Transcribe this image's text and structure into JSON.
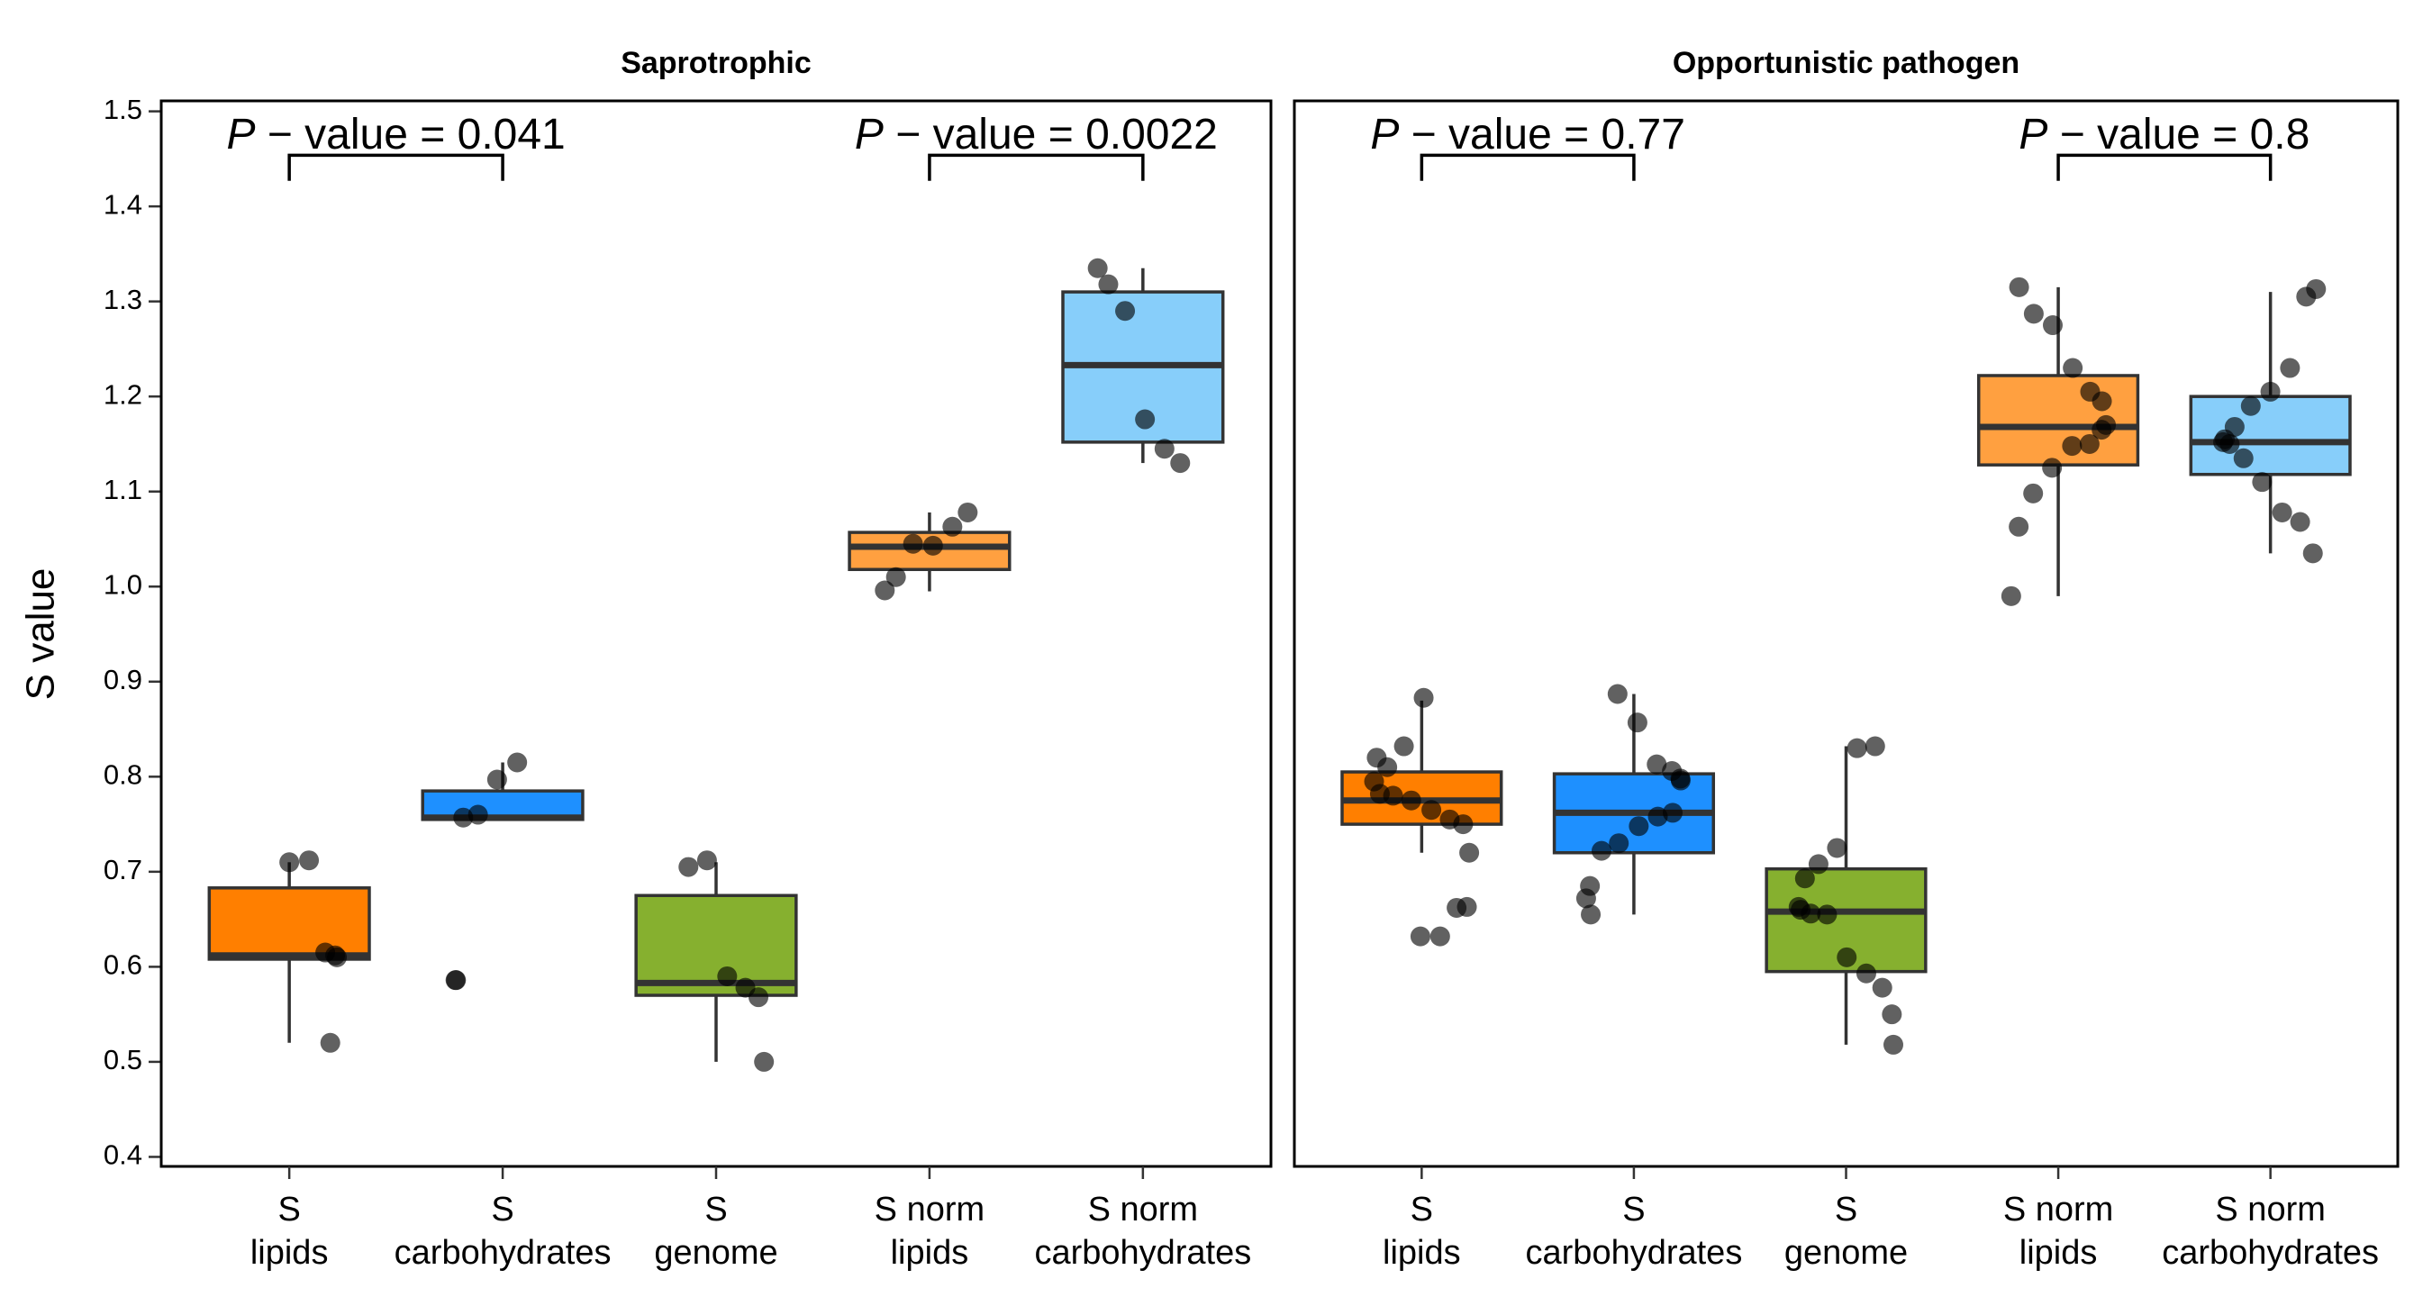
{
  "chart_data": {
    "type": "box",
    "ylabel": "S value",
    "ylim": [
      0.39,
      1.511
    ],
    "yticks": [
      {
        "value": 0.4,
        "label": "0.4"
      },
      {
        "value": 0.5,
        "label": "0.5"
      },
      {
        "value": 0.6,
        "label": "0.6"
      },
      {
        "value": 0.7,
        "label": "0.7"
      },
      {
        "value": 0.8,
        "label": "0.8"
      },
      {
        "value": 0.9,
        "label": "0.9"
      },
      {
        "value": 1.0,
        "label": "1.0"
      },
      {
        "value": 1.1,
        "label": "1.1"
      },
      {
        "value": 1.2,
        "label": "1.2"
      },
      {
        "value": 1.3,
        "label": "1.3"
      },
      {
        "value": 1.4,
        "label": "1.4"
      },
      {
        "value": 1.5,
        "label": "1.5"
      }
    ],
    "categories": [
      [
        "S",
        "lipids"
      ],
      [
        "S",
        "carbohydrates"
      ],
      [
        "S",
        "genome"
      ],
      [
        "S norm",
        "lipids"
      ],
      [
        "S norm",
        "carbohydrates"
      ]
    ],
    "panels": [
      {
        "title": "Saprotrophic",
        "colors": [
          "#ff7f00",
          "#1e90ff",
          "#86b02f",
          "#ffa040",
          "#87cefa"
        ],
        "annotations": [
          "P − value = 0.041",
          "P − value = 0.0022"
        ],
        "boxes": [
          {
            "min": 0.52,
            "q1": 0.608,
            "median": 0.612,
            "q3": 0.683,
            "max": 0.71,
            "points": [
              0.71,
              0.712,
              0.615,
              0.612,
              0.61,
              0.52
            ]
          },
          {
            "min": 0.755,
            "q1": 0.755,
            "median": 0.757,
            "q3": 0.785,
            "max": 0.815,
            "points": [
              0.815,
              0.797,
              0.76,
              0.757,
              0.586,
              0.586
            ]
          },
          {
            "min": 0.5,
            "q1": 0.57,
            "median": 0.583,
            "q3": 0.675,
            "max": 0.71,
            "points": [
              0.705,
              0.712,
              0.59,
              0.578,
              0.568,
              0.5
            ]
          },
          {
            "min": 0.995,
            "q1": 1.018,
            "median": 1.042,
            "q3": 1.057,
            "max": 1.078,
            "points": [
              1.078,
              1.063,
              1.043,
              1.045,
              1.01,
              0.996
            ]
          },
          {
            "min": 1.13,
            "q1": 1.152,
            "median": 1.233,
            "q3": 1.31,
            "max": 1.335,
            "points": [
              1.335,
              1.318,
              1.29,
              1.176,
              1.145,
              1.13
            ]
          }
        ]
      },
      {
        "title": "Opportunistic pathogen",
        "colors": [
          "#ff7f00",
          "#1e90ff",
          "#86b02f",
          "#ffa040",
          "#87cefa"
        ],
        "annotations": [
          "P − value = 0.77",
          "P − value = 0.8"
        ],
        "boxes": [
          {
            "min": 0.72,
            "q1": 0.75,
            "median": 0.775,
            "q3": 0.805,
            "max": 0.88,
            "points": [
              0.883,
              0.832,
              0.81,
              0.82,
              0.795,
              0.782,
              0.78,
              0.775,
              0.765,
              0.755,
              0.75,
              0.72,
              0.663,
              0.662,
              0.632,
              0.632
            ]
          },
          {
            "min": 0.655,
            "q1": 0.72,
            "median": 0.762,
            "q3": 0.803,
            "max": 0.887,
            "points": [
              0.887,
              0.857,
              0.813,
              0.806,
              0.798,
              0.796,
              0.762,
              0.758,
              0.748,
              0.73,
              0.722,
              0.685,
              0.672,
              0.655
            ]
          },
          {
            "min": 0.518,
            "q1": 0.595,
            "median": 0.658,
            "q3": 0.703,
            "max": 0.832,
            "points": [
              0.832,
              0.83,
              0.725,
              0.708,
              0.693,
              0.663,
              0.66,
              0.656,
              0.655,
              0.61,
              0.593,
              0.578,
              0.55,
              0.518
            ]
          },
          {
            "min": 0.99,
            "q1": 1.128,
            "median": 1.168,
            "q3": 1.222,
            "max": 1.315,
            "points": [
              1.315,
              1.287,
              1.275,
              1.23,
              1.205,
              1.195,
              1.17,
              1.165,
              1.15,
              1.148,
              1.125,
              1.098,
              1.063,
              0.99
            ]
          },
          {
            "min": 1.035,
            "q1": 1.118,
            "median": 1.152,
            "q3": 1.2,
            "max": 1.31,
            "points": [
              1.313,
              1.305,
              1.23,
              1.205,
              1.19,
              1.168,
              1.155,
              1.152,
              1.15,
              1.135,
              1.11,
              1.078,
              1.068,
              1.035
            ]
          }
        ]
      }
    ]
  }
}
